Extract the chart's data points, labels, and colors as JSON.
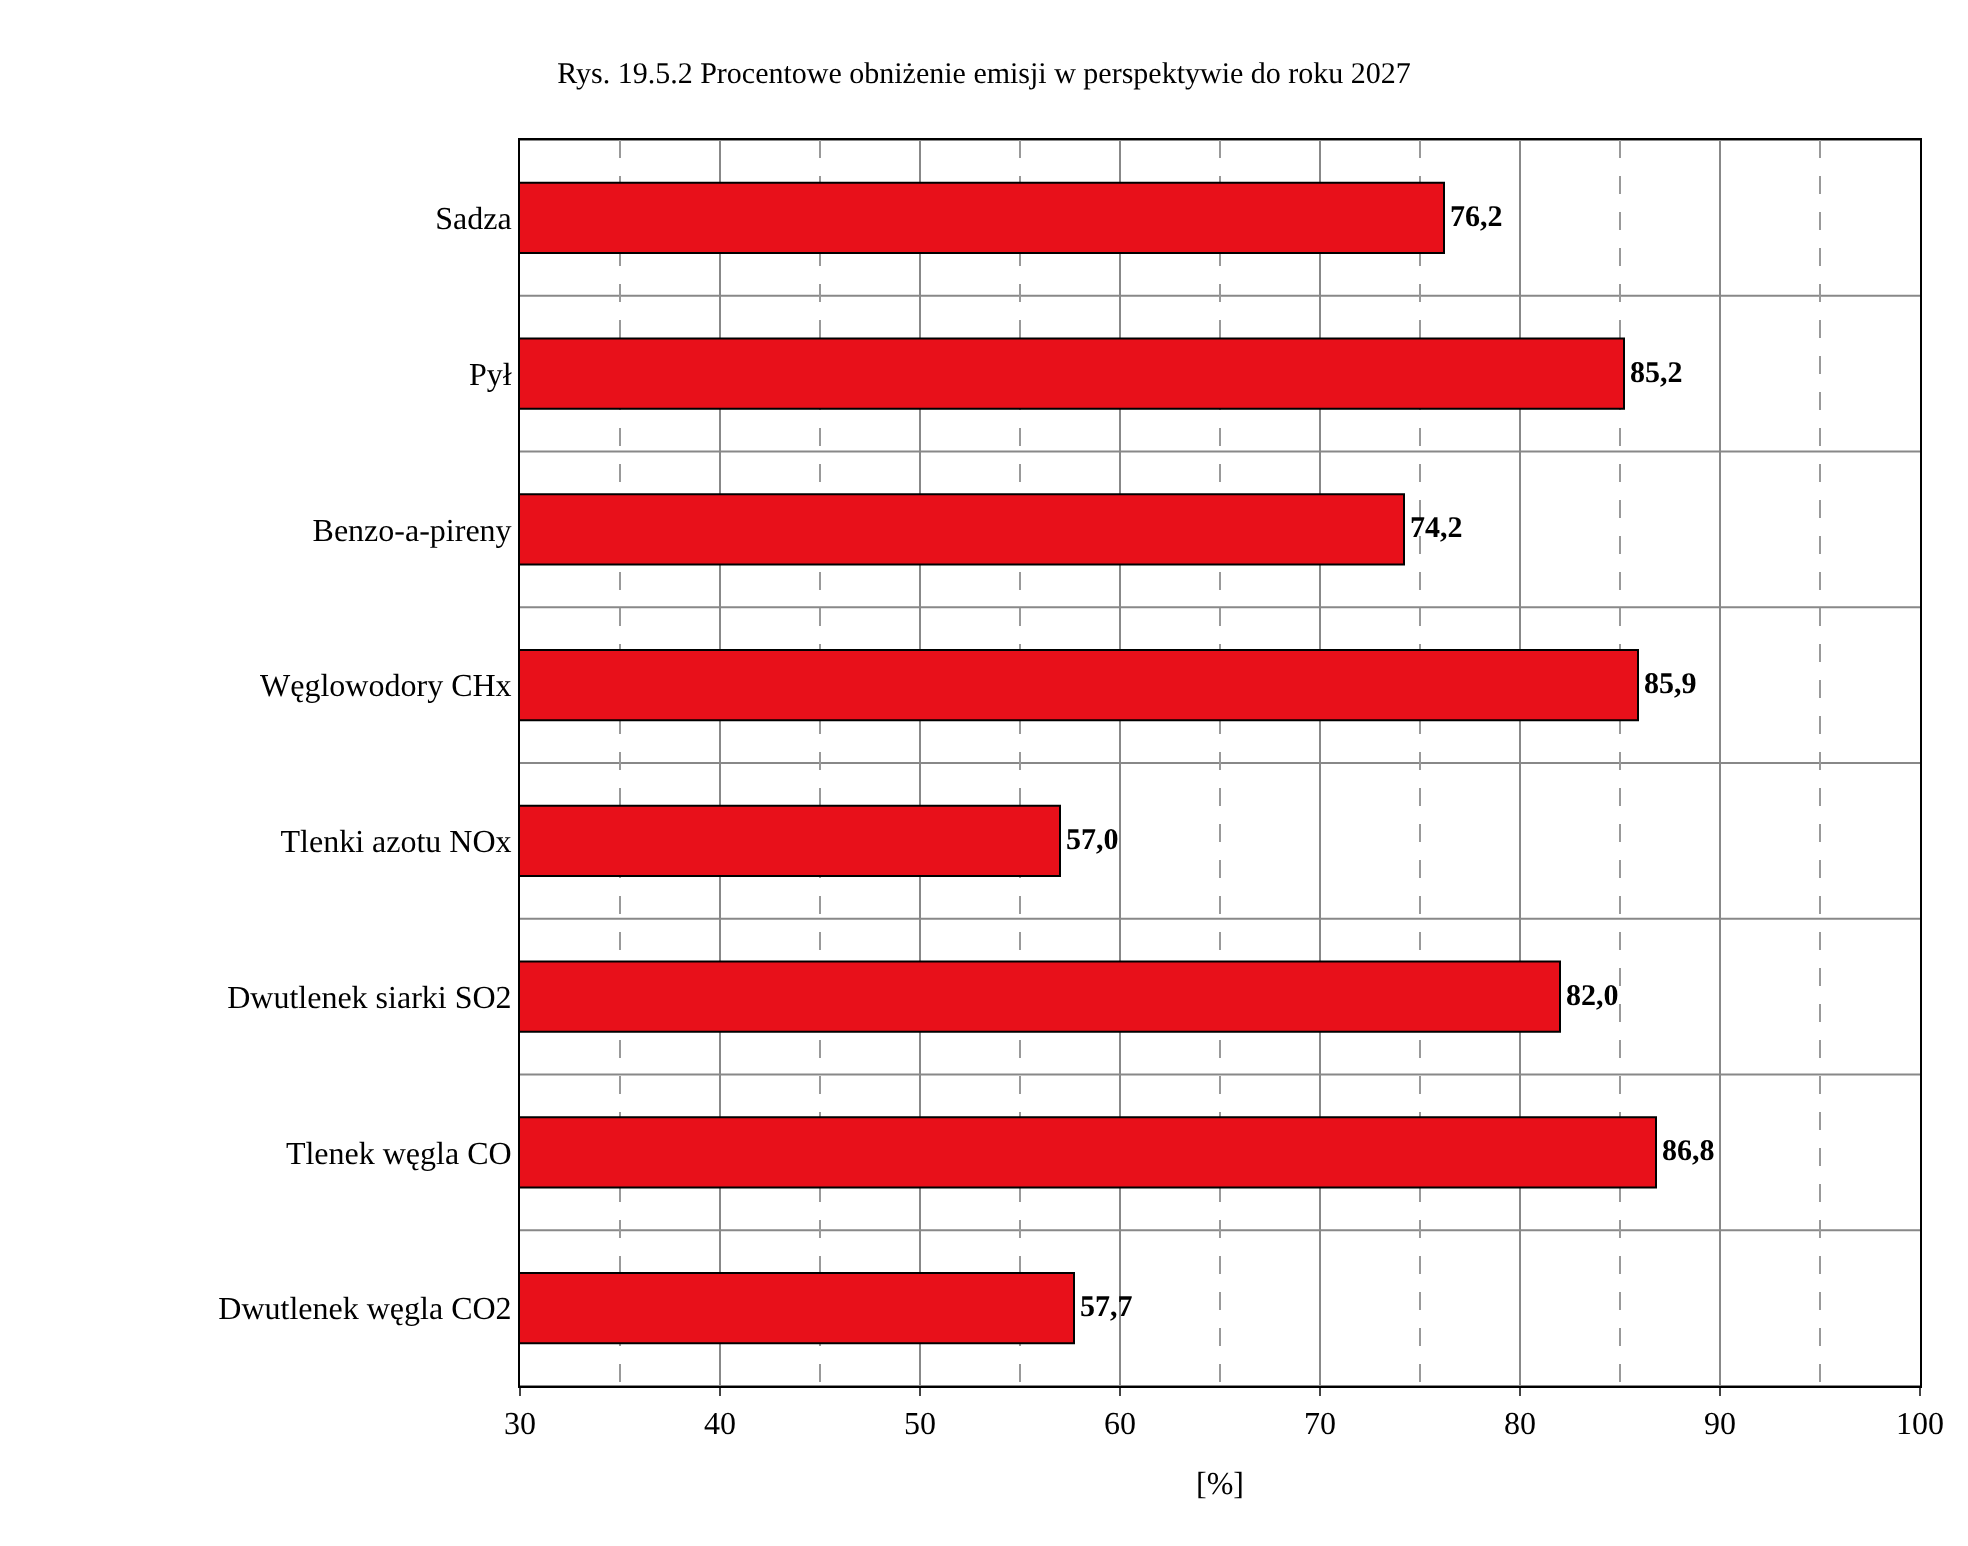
{
  "chart_data": {
    "type": "bar",
    "orientation": "horizontal",
    "title": "Rys. 19.5.2 Procentowe obniżenie emisji w perspektywie do roku 2027",
    "xlabel": "[%]",
    "categories": [
      "Sadza",
      "Pył",
      "Benzo-a-pireny",
      "Węglowodory CHx",
      "Tlenki azotu NOx",
      "Dwutlenek siarki SO2",
      "Tlenek węgla CO",
      "Dwutlenek węgla CO2"
    ],
    "values": [
      76.2,
      85.2,
      74.2,
      85.9,
      57.0,
      82.0,
      86.8,
      57.7
    ],
    "value_labels": [
      "76,2",
      "85,2",
      "74,2",
      "85,9",
      "57,0",
      "82,0",
      "86,8",
      "57,7"
    ],
    "color": "#e8101a",
    "xlim": [
      30,
      100
    ],
    "xticks": [
      30,
      40,
      50,
      60,
      70,
      80,
      90,
      100
    ],
    "grid": true
  }
}
